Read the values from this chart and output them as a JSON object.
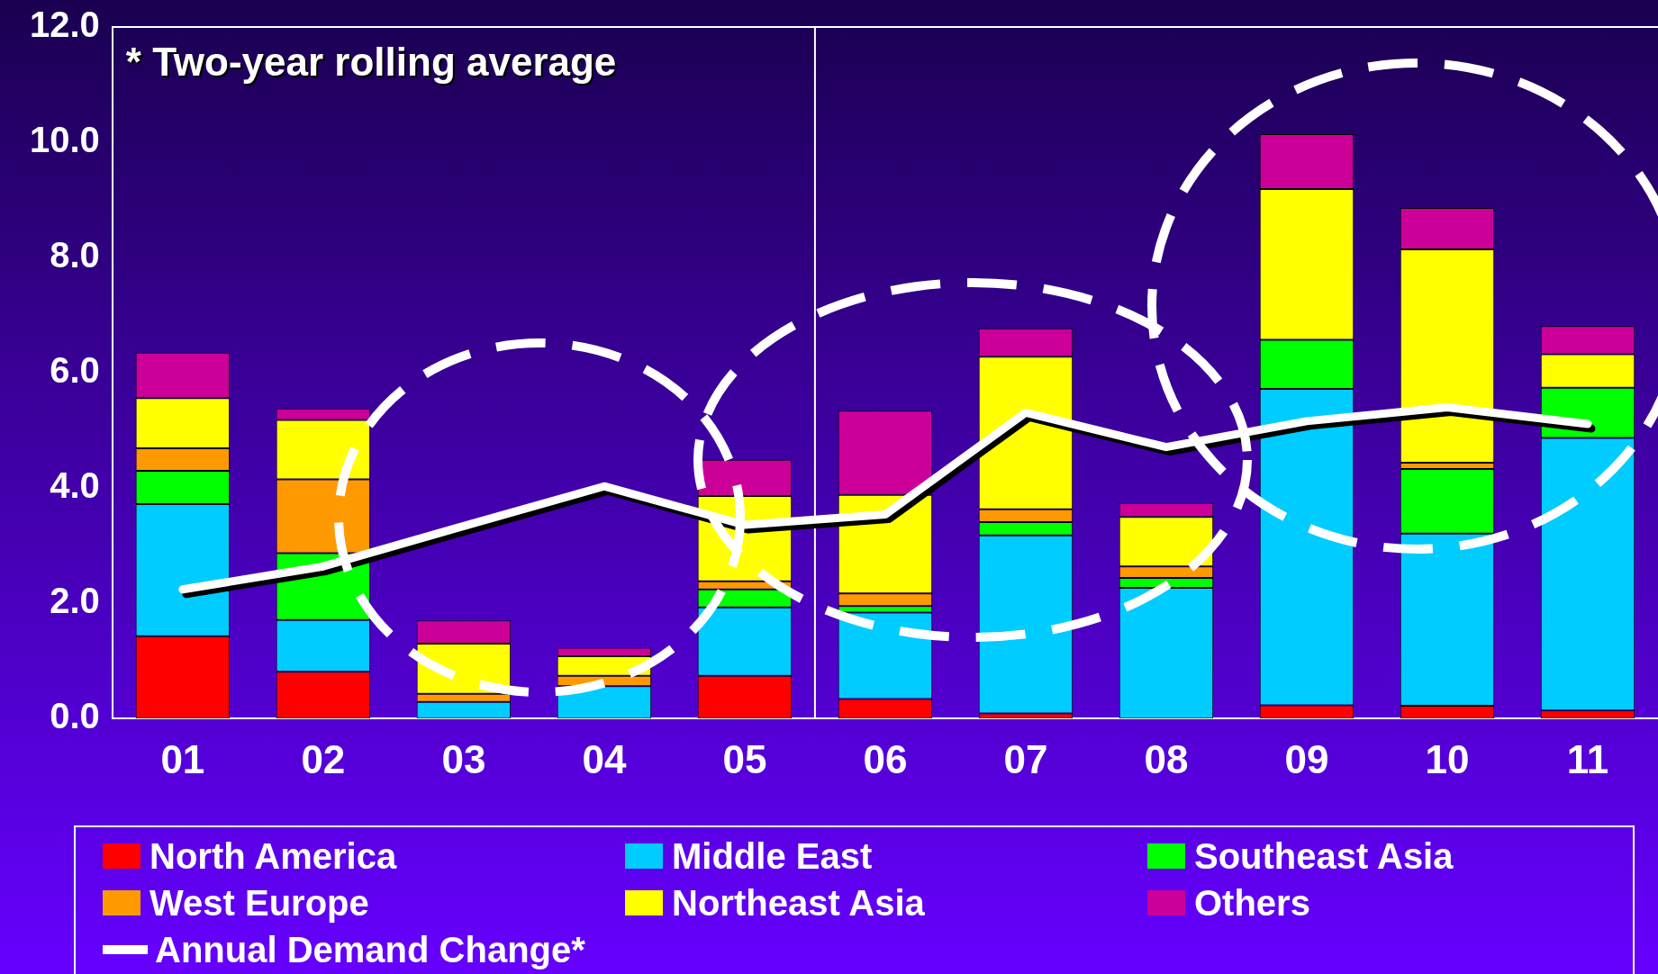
{
  "chart_data": {
    "type": "bar",
    "stacked": true,
    "x": [
      1,
      2,
      3,
      4,
      5,
      6,
      7,
      8,
      9,
      10,
      11
    ],
    "xlim": [
      0.5,
      11.5
    ],
    "xticks": [
      {
        "value": 1,
        "label": "01"
      },
      {
        "value": 2,
        "label": "02"
      },
      {
        "value": 3,
        "label": "03"
      },
      {
        "value": 4,
        "label": "04"
      },
      {
        "value": 5,
        "label": "05"
      },
      {
        "value": 6,
        "label": "06"
      },
      {
        "value": 7,
        "label": "07"
      },
      {
        "value": 8,
        "label": "08"
      },
      {
        "value": 9,
        "label": "09"
      },
      {
        "value": 10,
        "label": "10"
      },
      {
        "value": 11,
        "label": "11"
      }
    ],
    "ylim": [
      0,
      12
    ],
    "yticks": [
      {
        "value": 0,
        "label": "0.0"
      },
      {
        "value": 2,
        "label": "2.0"
      },
      {
        "value": 4,
        "label": "4.0"
      },
      {
        "value": 6,
        "label": "6.0"
      },
      {
        "value": 8,
        "label": "8.0"
      },
      {
        "value": 10,
        "label": "10.0"
      },
      {
        "value": 12,
        "label": "12.0"
      }
    ],
    "grid": false,
    "legend": "bottom",
    "annotations": [
      "* Two-year rolling average"
    ],
    "ref_lines": [
      {
        "axis": "x",
        "value": 5.5,
        "color": "#ffffff"
      }
    ],
    "series": [
      {
        "name": "North America",
        "color": "#ff0000",
        "values": [
          1.43,
          0.81,
          null,
          null,
          0.74,
          0.34,
          0.09,
          null,
          0.23,
          0.22,
          0.14
        ]
      },
      {
        "name": "Middle East",
        "color": "#00ccff",
        "values": [
          2.29,
          0.9,
          0.29,
          0.56,
          1.19,
          1.5,
          3.09,
          2.27,
          5.49,
          2.99,
          4.73
        ]
      },
      {
        "name": "Southeast Asia",
        "color": "#00ff00",
        "values": [
          0.58,
          1.16,
          null,
          null,
          0.31,
          0.11,
          0.23,
          0.17,
          0.85,
          1.12,
          0.87
        ]
      },
      {
        "name": "West Europe",
        "color": "#ff9900",
        "values": [
          0.39,
          1.28,
          0.14,
          0.18,
          0.14,
          0.22,
          0.22,
          0.2,
          null,
          0.11,
          null
        ]
      },
      {
        "name": "Northeast Asia",
        "color": "#ffff00",
        "values": [
          0.87,
          1.03,
          0.87,
          0.34,
          1.48,
          1.71,
          2.65,
          0.86,
          2.62,
          3.7,
          0.58
        ]
      },
      {
        "name": "Others",
        "color": "#cc0099",
        "values": [
          0.79,
          0.2,
          0.4,
          0.15,
          0.63,
          1.46,
          0.49,
          0.24,
          0.95,
          0.72,
          0.49
        ]
      },
      {
        "name": "Annual Demand Change*",
        "type": "line",
        "color": "#ffffff",
        "marker": "none",
        "line_style": "solid",
        "values": [
          2.24,
          2.64,
          3.34,
          4.03,
          3.36,
          3.54,
          5.31,
          4.71,
          5.16,
          5.4,
          5.11
        ]
      }
    ]
  }
}
